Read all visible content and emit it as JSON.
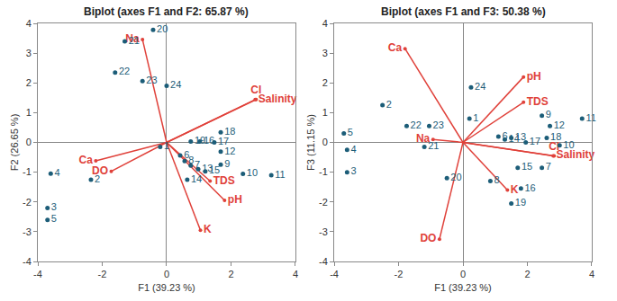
{
  "chart_data": [
    {
      "type": "scatter",
      "title": "Biplot (axes F1 and F2: 65.87 %)",
      "x_label": "F1 (39.23 %)",
      "y_label": "F2 (26.65 %)",
      "xlim": [
        -4,
        4
      ],
      "ylim": [
        -4,
        4
      ],
      "xticks": [
        -4,
        -2,
        0,
        2,
        4
      ],
      "yticks": [
        -4,
        -3,
        -2,
        -1,
        0,
        1,
        2,
        3,
        4
      ],
      "grid": false,
      "points": {
        "color": "#1c5d78",
        "marker": "circle",
        "labels": [
          "1",
          "2",
          "3",
          "4",
          "5",
          "6",
          "7",
          "8",
          "9",
          "10",
          "11",
          "12",
          "13",
          "14",
          "15",
          "16",
          "17",
          "18",
          "19",
          "20",
          "21",
          "22",
          "23",
          "24"
        ],
        "x": [
          -0.2,
          -2.35,
          -3.7,
          -3.6,
          -3.7,
          0.42,
          0.75,
          0.56,
          1.68,
          2.37,
          3.25,
          1.68,
          0.98,
          0.64,
          1.2,
          1.03,
          1.48,
          1.68,
          0.75,
          -0.42,
          -1.3,
          -1.6,
          -0.75,
          0.0
        ],
        "y": [
          -0.15,
          -1.25,
          -2.2,
          -1.05,
          -2.6,
          -0.44,
          -0.78,
          -0.63,
          -0.75,
          -1.06,
          -1.1,
          -0.31,
          -0.9,
          -1.25,
          -0.97,
          0.03,
          0.0,
          0.34,
          0.03,
          3.78,
          3.4,
          2.35,
          2.06,
          1.9
        ]
      },
      "vectors": {
        "color": "#e0413a",
        "labels": [
          "Na",
          "Salinity",
          "Cl",
          "Ca",
          "DO",
          "TDS",
          "pH",
          "K"
        ],
        "x": [
          -0.75,
          2.75,
          2.78,
          -2.2,
          -1.72,
          1.35,
          1.8,
          1.05
        ],
        "y": [
          3.46,
          1.44,
          1.44,
          -0.62,
          -0.97,
          -1.3,
          -1.95,
          -2.95
        ]
      }
    },
    {
      "type": "scatter",
      "title": "Biplot (axes F1 and F3: 50.38 %)",
      "x_label": "F1 (39.23 %)",
      "y_label": "F3 (11.15 %)",
      "xlim": [
        -4,
        4
      ],
      "ylim": [
        -4,
        4
      ],
      "xticks": [
        -4,
        -2,
        0,
        2,
        4
      ],
      "yticks": [
        -4,
        -3,
        -2,
        -1,
        0,
        1,
        2,
        3,
        4
      ],
      "grid": false,
      "points": {
        "color": "#1c5d78",
        "marker": "circle",
        "labels": [
          "1",
          "2",
          "3",
          "4",
          "5",
          "6",
          "7",
          "8",
          "9",
          "10",
          "11",
          "12",
          "13",
          "14",
          "15",
          "16",
          "17",
          "18",
          "19",
          "20",
          "21",
          "22",
          "23",
          "24"
        ],
        "x": [
          0.2,
          -2.5,
          -3.6,
          -3.6,
          -3.7,
          1.1,
          2.45,
          0.85,
          2.45,
          3.0,
          3.7,
          2.7,
          1.5,
          1.3,
          1.7,
          1.8,
          1.95,
          2.6,
          1.5,
          -0.5,
          -1.2,
          -1.75,
          -1.05,
          0.25
        ],
        "y": [
          0.8,
          1.25,
          -1.0,
          -0.25,
          0.3,
          0.2,
          -0.85,
          -1.3,
          0.9,
          -0.1,
          0.8,
          0.55,
          0.15,
          0.1,
          -0.85,
          -1.55,
          0.0,
          0.15,
          -2.05,
          -1.2,
          -0.15,
          0.55,
          0.55,
          1.85
        ]
      },
      "vectors": {
        "color": "#e0413a",
        "labels": [
          "Ca",
          "pH",
          "TDS",
          "Salinity",
          "Cl",
          "Na",
          "K",
          "DO"
        ],
        "x": [
          -1.8,
          1.88,
          1.88,
          2.8,
          2.83,
          -0.93,
          1.38,
          -0.73
        ],
        "y": [
          3.15,
          2.2,
          1.35,
          -0.45,
          -0.45,
          0.1,
          -1.6,
          -3.25
        ]
      }
    }
  ]
}
